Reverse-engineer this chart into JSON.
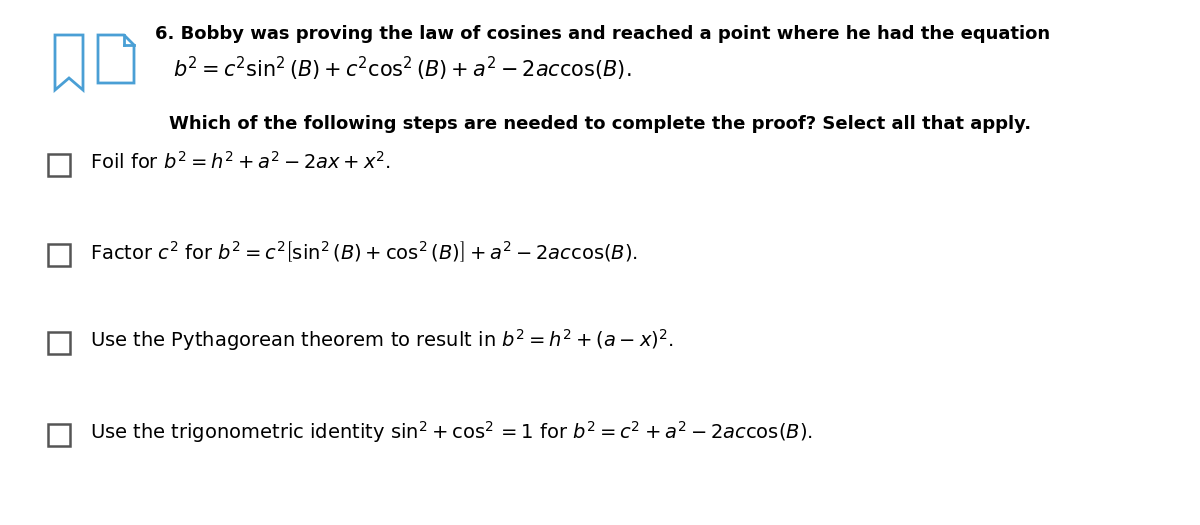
{
  "background_color": "#ffffff",
  "figsize": [
    12.0,
    5.25
  ],
  "dpi": 100,
  "question_number": "6.",
  "header_bold": " Bobby was proving the law of cosines and reached a point where he had the equation",
  "header_eq": "$b^2 = c^2 \\sin^2(B) + c^2 \\cos^2(B) + a^2 - 2ac\\cos(B).$",
  "subquestion": "Which of the following steps are needed to complete the proof? Select all that apply.",
  "option1_prefix": "Foil for ",
  "option1_math": "$b^2 = h^2 + a^2 - 2ax + x^2.$",
  "option2_prefix": "Factor $c^2$ for ",
  "option2_math": "$b^2 = c^2\\left[\\sin^2(B) + \\cos^2(B)\\right] + a^2 - 2ac\\cos(B).$",
  "option3_prefix": "Use the Pythagorean theorem to result in ",
  "option3_math": "$b^2 = h^2 + (a - x)^2.$",
  "option4_prefix": "Use the trigonometric identity $\\sin^2\\!+\\cos^2 = 1$ for ",
  "option4_math": "$b^2 = c^2 + a^2 - 2ac\\cos(B).$",
  "text_color": "#000000",
  "icon_color": "#4a9fd5",
  "header_fontsize": 13,
  "eq_fontsize": 15,
  "subq_fontsize": 13,
  "option_fontsize": 14
}
